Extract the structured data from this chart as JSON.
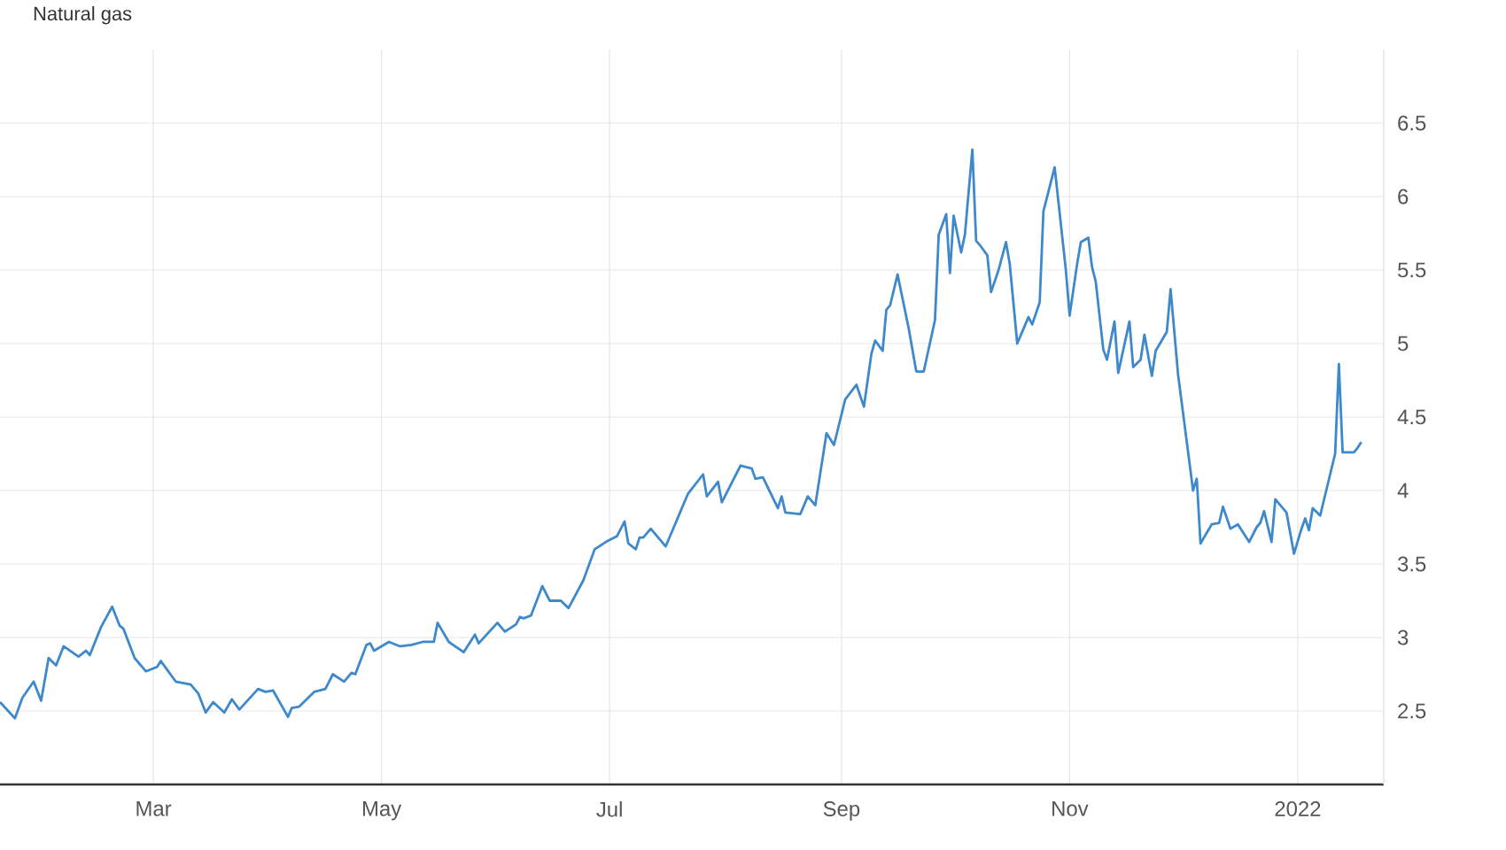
{
  "chart_data": {
    "type": "line",
    "title": "Natural gas",
    "x": [
      "2021-01-19",
      "2021-01-23",
      "2021-01-25",
      "2021-01-28",
      "2021-01-30",
      "2021-02-01",
      "2021-02-03",
      "2021-02-05",
      "2021-02-09",
      "2021-02-11",
      "2021-02-12",
      "2021-02-15",
      "2021-02-18",
      "2021-02-20",
      "2021-02-21",
      "2021-02-24",
      "2021-02-27",
      "2021-03-02",
      "2021-03-03",
      "2021-03-07",
      "2021-03-11",
      "2021-03-13",
      "2021-03-15",
      "2021-03-17",
      "2021-03-20",
      "2021-03-22",
      "2021-03-24",
      "2021-03-29",
      "2021-03-31",
      "2021-04-02",
      "2021-04-06",
      "2021-04-07",
      "2021-04-09",
      "2021-04-13",
      "2021-04-16",
      "2021-04-18",
      "2021-04-21",
      "2021-04-23",
      "2021-04-24",
      "2021-04-27",
      "2021-04-28",
      "2021-04-29",
      "2021-05-03",
      "2021-05-06",
      "2021-05-09",
      "2021-05-12",
      "2021-05-15",
      "2021-05-16",
      "2021-05-19",
      "2021-05-23",
      "2021-05-26",
      "2021-05-27",
      "2021-06-01",
      "2021-06-03",
      "2021-06-06",
      "2021-06-07",
      "2021-06-08",
      "2021-06-10",
      "2021-06-13",
      "2021-06-15",
      "2021-06-18",
      "2021-06-20",
      "2021-06-24",
      "2021-06-27",
      "2021-06-30",
      "2021-07-03",
      "2021-07-05",
      "2021-07-06",
      "2021-07-08",
      "2021-07-09",
      "2021-07-10",
      "2021-07-12",
      "2021-07-16",
      "2021-07-22",
      "2021-07-26",
      "2021-07-27",
      "2021-07-30",
      "2021-07-31",
      "2021-08-05",
      "2021-08-08",
      "2021-08-09",
      "2021-08-11",
      "2021-08-15",
      "2021-08-16",
      "2021-08-17",
      "2021-08-21",
      "2021-08-23",
      "2021-08-25",
      "2021-08-28",
      "2021-08-30",
      "2021-09-02",
      "2021-09-05",
      "2021-09-07",
      "2021-09-09",
      "2021-09-10",
      "2021-09-12",
      "2021-09-13",
      "2021-09-14",
      "2021-09-16",
      "2021-09-19",
      "2021-09-21",
      "2021-09-23",
      "2021-09-26",
      "2021-09-27",
      "2021-09-29",
      "2021-09-30",
      "2021-10-01",
      "2021-10-03",
      "2021-10-04",
      "2021-10-06",
      "2021-10-07",
      "2021-10-08",
      "2021-10-10",
      "2021-10-11",
      "2021-10-13",
      "2021-10-15",
      "2021-10-16",
      "2021-10-18",
      "2021-10-21",
      "2021-10-22",
      "2021-10-24",
      "2021-10-25",
      "2021-10-28",
      "2021-10-31",
      "2021-11-01",
      "2021-11-03",
      "2021-11-04",
      "2021-11-06",
      "2021-11-07",
      "2021-11-08",
      "2021-11-10",
      "2021-11-11",
      "2021-11-13",
      "2021-11-14",
      "2021-11-17",
      "2021-11-18",
      "2021-11-20",
      "2021-11-21",
      "2021-11-23",
      "2021-11-24",
      "2021-11-27",
      "2021-11-28",
      "2021-11-30",
      "2021-12-03",
      "2021-12-04",
      "2021-12-05",
      "2021-12-06",
      "2021-12-09",
      "2021-12-11",
      "2021-12-12",
      "2021-12-14",
      "2021-12-16",
      "2021-12-19",
      "2021-12-21",
      "2021-12-22",
      "2021-12-23",
      "2021-12-25",
      "2021-12-26",
      "2021-12-29",
      "2021-12-31",
      "2022-01-02",
      "2022-01-03",
      "2022-01-04",
      "2022-01-05",
      "2022-01-07",
      "2022-01-09",
      "2022-01-11",
      "2022-01-12",
      "2022-01-13",
      "2022-01-16",
      "2022-01-17",
      "2022-01-18"
    ],
    "series": [
      {
        "color": "#3d89cc",
        "values": [
          2.56,
          2.45,
          2.59,
          2.7,
          2.57,
          2.86,
          2.81,
          2.94,
          2.87,
          2.91,
          2.88,
          3.07,
          3.21,
          3.08,
          3.06,
          2.86,
          2.77,
          2.8,
          2.84,
          2.7,
          2.68,
          2.62,
          2.49,
          2.56,
          2.49,
          2.58,
          2.51,
          2.65,
          2.63,
          2.64,
          2.46,
          2.52,
          2.53,
          2.63,
          2.65,
          2.75,
          2.7,
          2.76,
          2.75,
          2.95,
          2.96,
          2.91,
          2.97,
          2.94,
          2.95,
          2.97,
          2.97,
          3.1,
          2.97,
          2.9,
          3.02,
          2.96,
          3.1,
          3.04,
          3.09,
          3.14,
          3.13,
          3.15,
          3.35,
          3.25,
          3.25,
          3.2,
          3.39,
          3.6,
          3.65,
          3.69,
          3.79,
          3.64,
          3.6,
          3.68,
          3.68,
          3.74,
          3.62,
          3.98,
          4.11,
          3.96,
          4.06,
          3.92,
          4.17,
          4.15,
          4.08,
          4.09,
          3.88,
          3.96,
          3.85,
          3.84,
          3.96,
          3.9,
          4.39,
          4.31,
          4.62,
          4.72,
          4.57,
          4.93,
          5.02,
          4.95,
          5.23,
          5.26,
          5.47,
          5.1,
          4.81,
          4.81,
          5.16,
          5.74,
          5.88,
          5.48,
          5.87,
          5.62,
          5.74,
          6.32,
          5.7,
          5.67,
          5.6,
          5.35,
          5.5,
          5.69,
          5.54,
          5.0,
          5.18,
          5.13,
          5.28,
          5.9,
          6.2,
          5.5,
          5.19,
          5.54,
          5.69,
          5.72,
          5.52,
          5.42,
          4.96,
          4.89,
          5.15,
          4.8,
          5.15,
          4.84,
          4.89,
          5.06,
          4.78,
          4.95,
          5.08,
          5.37,
          4.79,
          4.2,
          4.0,
          4.08,
          3.64,
          3.77,
          3.78,
          3.89,
          3.74,
          3.77,
          3.65,
          3.75,
          3.78,
          3.86,
          3.65,
          3.94,
          3.85,
          3.57,
          3.74,
          3.81,
          3.73,
          3.88,
          3.83,
          4.04,
          4.25,
          4.86,
          4.26,
          4.26,
          4.29,
          4.33
        ]
      }
    ],
    "xlim": [
      "2021-01-19",
      "2022-01-24"
    ],
    "xticks": [
      {
        "value": "2021-03-01",
        "label": "Mar"
      },
      {
        "value": "2021-05-01",
        "label": "May"
      },
      {
        "value": "2021-07-01",
        "label": "Jul"
      },
      {
        "value": "2021-09-01",
        "label": "Sep"
      },
      {
        "value": "2021-11-01",
        "label": "Nov"
      },
      {
        "value": "2022-01-01",
        "label": "2022"
      }
    ],
    "ylim": [
      2,
      7
    ],
    "yticks": [
      2.5,
      3,
      3.5,
      4,
      4.5,
      5,
      5.5,
      6,
      6.5
    ],
    "grid": true,
    "line_style": "solid"
  }
}
